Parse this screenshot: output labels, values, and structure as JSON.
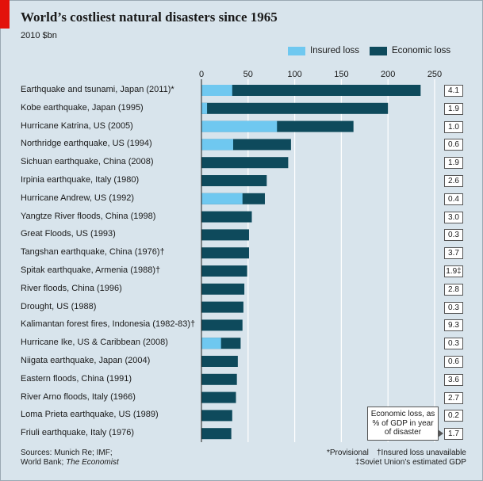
{
  "title": "World’s costliest natural disasters since 1965",
  "subtitle": "2010 $bn",
  "colors": {
    "insured": "#6fc8f0",
    "economic": "#0e4a5c",
    "background": "#d8e4ec",
    "accent": "#e3120b"
  },
  "gdp_note": "Economic loss, as % of GDP in year of disaster",
  "footer": {
    "sources_line1": "Sources: Munich Re; IMF;",
    "sources_line2": "World Bank; ",
    "sources_italic": "The Economist",
    "note1": "*Provisional",
    "note2": "†Insured loss unavailable",
    "note3": "‡Soviet Union’s estimated GDP"
  },
  "chart_data": {
    "type": "bar",
    "orientation": "horizontal",
    "stacked": "overlay",
    "xlim": [
      0,
      250
    ],
    "xticks": [
      "0",
      "50",
      "100",
      "150",
      "200",
      "250"
    ],
    "legend_position": "top-right",
    "grid": true,
    "series": [
      {
        "name": "Insured loss",
        "values": [
          33,
          6,
          81,
          34,
          null,
          null,
          44,
          null,
          null,
          null,
          null,
          null,
          null,
          null,
          21,
          null,
          null,
          null,
          null,
          null
        ]
      },
      {
        "name": "Economic loss",
        "values": [
          235,
          200,
          163,
          96,
          93,
          70,
          68,
          54,
          51,
          51,
          49,
          46,
          45,
          44,
          42,
          39,
          38,
          37,
          33,
          32
        ]
      }
    ],
    "categories": [
      "Earthquake and tsunami, Japan (2011)*",
      "Kobe earthquake, Japan (1995)",
      "Hurricane Katrina, US (2005)",
      "Northridge earthquake, US (1994)",
      "Sichuan earthquake, China (2008)",
      "Irpinia earthquake, Italy (1980)",
      "Hurricane Andrew, US (1992)",
      "Yangtze River floods, China (1998)",
      "Great Floods, US (1993)",
      "Tangshan earthquake, China (1976)†",
      "Spitak earthquake, Armenia (1988)†",
      "River floods, China (1996)",
      "Drought, US (1988)",
      "Kalimantan forest fires, Indonesia (1982-83)†",
      "Hurricane Ike, US & Caribbean (2008)",
      "Niigata earthquake, Japan (2004)",
      "Eastern floods, China (1991)",
      "River Arno floods, Italy (1966)",
      "Loma Prieta earthquake, US (1989)",
      "Friuli earthquake, Italy (1976)"
    ],
    "gdp_pct": [
      "4.1",
      "1.9",
      "1.0",
      "0.6",
      "1.9",
      "2.6",
      "0.4",
      "3.0",
      "0.3",
      "3.7",
      "1.9‡",
      "2.8",
      "0.3",
      "9.3",
      "0.3",
      "0.6",
      "3.6",
      "2.7",
      "0.2",
      "1.7"
    ]
  }
}
